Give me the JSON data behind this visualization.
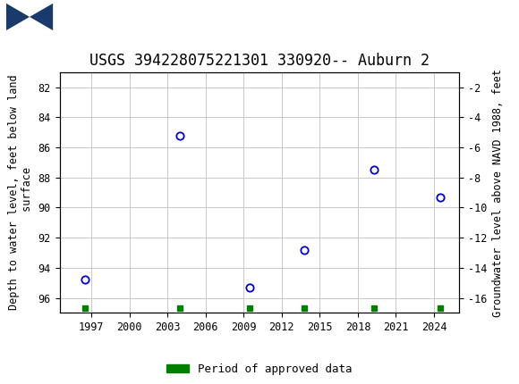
{
  "title": "USGS 394228075221301 330920-- Auburn 2",
  "ylabel_left": "Depth to water level, feet below land\n surface",
  "ylabel_right": "Groundwater level above NAVD 1988, feet",
  "x_years": [
    1996.5,
    2004.0,
    2009.5,
    2013.8,
    2019.3,
    2024.5
  ],
  "y_depth": [
    94.8,
    85.2,
    95.3,
    92.8,
    87.5,
    89.3
  ],
  "xlim": [
    1994.5,
    2026
  ],
  "xticks": [
    1997,
    2000,
    2003,
    2006,
    2009,
    2012,
    2015,
    2018,
    2021,
    2024
  ],
  "ylim_left": [
    97,
    81
  ],
  "ylim_right": [
    -17,
    -1
  ],
  "yticks_left": [
    82,
    84,
    86,
    88,
    90,
    92,
    94,
    96
  ],
  "yticks_right": [
    -2,
    -4,
    -6,
    -8,
    -10,
    -12,
    -14,
    -16
  ],
  "marker_color": "#0000cc",
  "grid_color": "#c8c8c8",
  "bg_color": "#ffffff",
  "legend_label": "Period of approved data",
  "legend_color": "#008000",
  "header_bg": "#1a6b3c",
  "green_sq_x": [
    1996.5,
    2004.0,
    2009.5,
    2013.8,
    2019.3,
    2024.5
  ],
  "title_fontsize": 12,
  "axis_fontsize": 8.5,
  "tick_fontsize": 8.5
}
